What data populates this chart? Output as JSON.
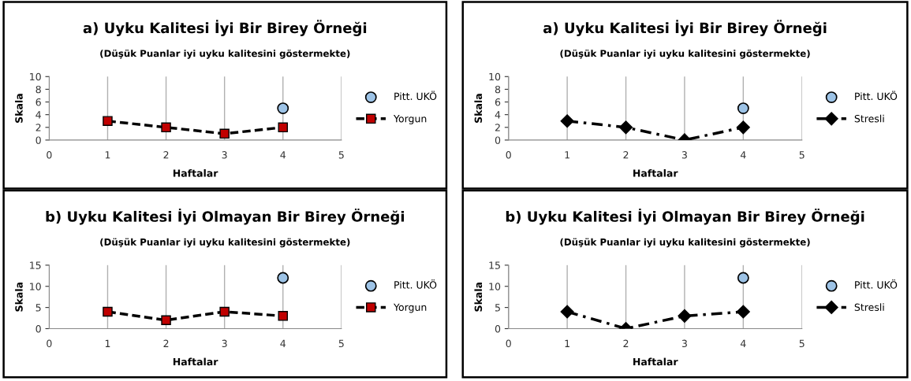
{
  "chart_data": [
    {
      "type": "line",
      "title": "a) Uyku Kalitesi İyi Bir Birey Örneği",
      "subtitle": "(Düşük Puanlar iyi uyku kalitesini göstermekte)",
      "xlabel": "Haftalar",
      "ylabel": "Skala",
      "x": [
        1,
        2,
        3,
        4
      ],
      "xlim": [
        0,
        5
      ],
      "xticks": [
        0,
        1,
        2,
        3,
        4,
        5
      ],
      "ylim": [
        0,
        10
      ],
      "yticks": [
        0,
        2,
        4,
        6,
        8,
        10
      ],
      "grid": "x",
      "legend": "right",
      "series": [
        {
          "name": "Pitt. UKÖ",
          "type": "scatter",
          "values": [
            null,
            null,
            null,
            5
          ],
          "color": "#9dc3e6",
          "marker": "circle"
        },
        {
          "name": "Yorgun",
          "values": [
            3,
            2,
            1,
            2
          ],
          "color": "#c00000",
          "marker": "square",
          "line_style": "dashed"
        }
      ]
    },
    {
      "type": "line",
      "title": "a) Uyku Kalitesi İyi Bir Birey Örneği",
      "subtitle": "(Düşük Puanlar iyi uyku kalitesini göstermekte)",
      "xlabel": "Haftalar",
      "ylabel": "Skala",
      "x": [
        1,
        2,
        3,
        4
      ],
      "xlim": [
        0,
        5
      ],
      "xticks": [
        0,
        1,
        2,
        3,
        4,
        5
      ],
      "ylim": [
        0,
        10
      ],
      "yticks": [
        0,
        2,
        4,
        6,
        8,
        10
      ],
      "grid": "x",
      "legend": "right",
      "series": [
        {
          "name": "Pitt. UKÖ",
          "type": "scatter",
          "values": [
            null,
            null,
            null,
            5
          ],
          "color": "#9dc3e6",
          "marker": "circle"
        },
        {
          "name": "Stresli",
          "values": [
            3,
            2,
            0,
            2
          ],
          "color": "#000000",
          "marker": "diamond",
          "line_style": "dashdot"
        }
      ]
    },
    {
      "type": "line",
      "title": "b) Uyku Kalitesi İyi Olmayan Bir Birey Örneği",
      "subtitle": "(Düşük Puanlar iyi uyku kalitesini göstermekte)",
      "xlabel": "Haftalar",
      "ylabel": "Skala",
      "x": [
        1,
        2,
        3,
        4
      ],
      "xlim": [
        0,
        5
      ],
      "xticks": [
        0,
        1,
        2,
        3,
        4,
        5
      ],
      "ylim": [
        0,
        15
      ],
      "yticks": [
        0,
        5,
        10,
        15
      ],
      "grid": "x",
      "legend": "right",
      "series": [
        {
          "name": "Pitt. UKÖ",
          "type": "scatter",
          "values": [
            null,
            null,
            null,
            12
          ],
          "color": "#9dc3e6",
          "marker": "circle"
        },
        {
          "name": "Yorgun",
          "values": [
            4,
            2,
            4,
            3
          ],
          "color": "#c00000",
          "marker": "square",
          "line_style": "dashed"
        }
      ]
    },
    {
      "type": "line",
      "title": "b) Uyku Kalitesi İyi Olmayan Bir Birey Örneği",
      "subtitle": "(Düşük Puanlar iyi uyku kalitesini göstermekte)",
      "xlabel": "Haftalar",
      "ylabel": "Skala",
      "x": [
        1,
        2,
        3,
        4
      ],
      "xlim": [
        0,
        5
      ],
      "xticks": [
        0,
        1,
        2,
        3,
        4,
        5
      ],
      "ylim": [
        0,
        15
      ],
      "yticks": [
        0,
        5,
        10,
        15
      ],
      "grid": "x",
      "legend": "right",
      "series": [
        {
          "name": "Pitt. UKÖ",
          "type": "scatter",
          "values": [
            null,
            null,
            null,
            12
          ],
          "color": "#9dc3e6",
          "marker": "circle"
        },
        {
          "name": "Stresli",
          "values": [
            4,
            0,
            3,
            4
          ],
          "color": "#000000",
          "marker": "diamond",
          "line_style": "dashdot"
        }
      ]
    }
  ]
}
